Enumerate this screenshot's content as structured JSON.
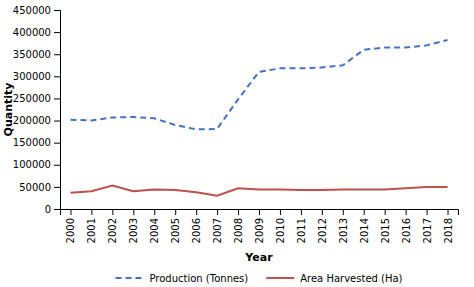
{
  "chart_data": {
    "type": "line",
    "x": [
      2000,
      2001,
      2002,
      2003,
      2004,
      2005,
      2006,
      2007,
      2008,
      2009,
      2010,
      2011,
      2012,
      2013,
      2014,
      2015,
      2016,
      2017,
      2018
    ],
    "series": [
      {
        "name": "Production (Tonnes)",
        "color": "#4472c4",
        "line_style": "dashed",
        "values": [
          202000,
          200000,
          207000,
          208000,
          205000,
          190000,
          180000,
          181000,
          248000,
          310000,
          318000,
          318000,
          320000,
          325000,
          360000,
          365000,
          365000,
          370000,
          382000
        ]
      },
      {
        "name": "Area Harvested (Ha)",
        "color": "#c0504d",
        "line_style": "solid",
        "values": [
          37000,
          40000,
          53000,
          40000,
          44000,
          43000,
          38000,
          30000,
          47000,
          44000,
          44000,
          43000,
          43000,
          44000,
          44000,
          44000,
          47000,
          50000,
          50000
        ]
      }
    ],
    "xlabel": "Year",
    "ylabel": "Quantity",
    "xlim": [
      1999.5,
      2018.5
    ],
    "xticks": [
      2000,
      2001,
      2002,
      2003,
      2004,
      2005,
      2006,
      2007,
      2008,
      2009,
      2010,
      2011,
      2012,
      2013,
      2014,
      2015,
      2016,
      2017,
      2018
    ],
    "ylim": [
      0,
      450000
    ],
    "yticks": [
      0,
      50000,
      100000,
      150000,
      200000,
      250000,
      300000,
      350000,
      400000,
      450000
    ],
    "grid": false,
    "legend": "bottom"
  }
}
